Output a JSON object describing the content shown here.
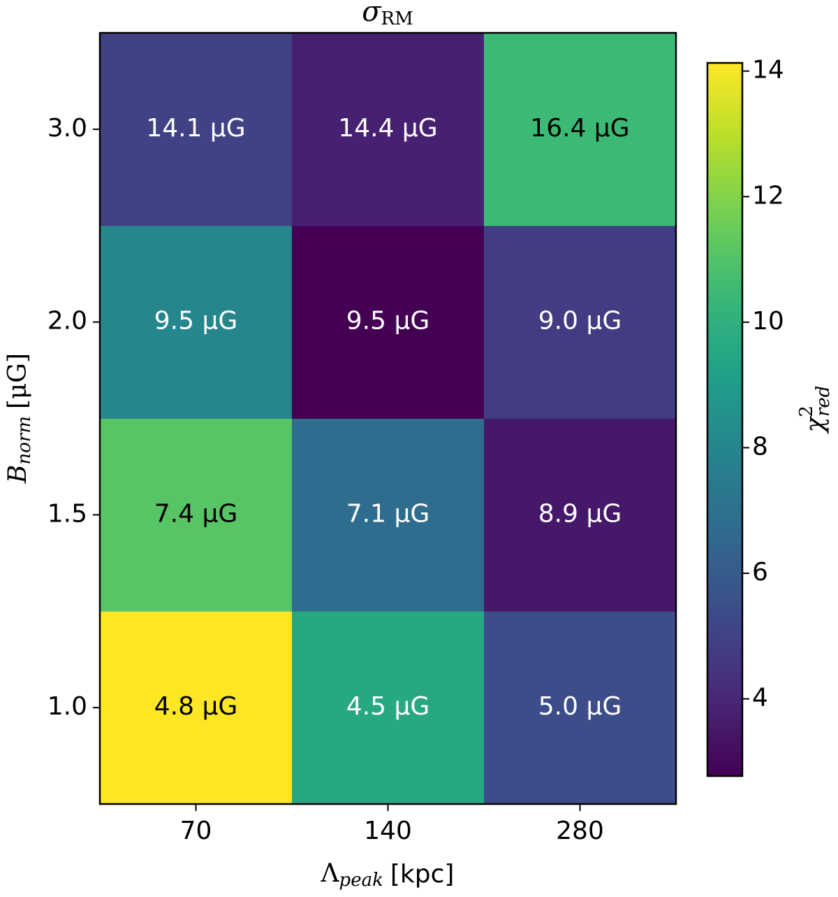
{
  "chart_data": {
    "type": "heatmap",
    "title": {
      "symbol": "σ",
      "subscript": "RM"
    },
    "x_label": {
      "symbol": "Λ",
      "subscript": "peak",
      "unit": "[kpc]"
    },
    "y_label": {
      "symbol": "B",
      "subscript": "norm",
      "unit": "[μG]"
    },
    "colorbar_label": {
      "symbol": "χ",
      "superscript": "2",
      "subscript": "red"
    },
    "x": [
      "70",
      "140",
      "280"
    ],
    "y": [
      "1.0",
      "1.5",
      "2.0",
      "3.0"
    ],
    "values": [
      [
        14.13,
        9.6,
        5.4
      ],
      [
        11.1,
        6.8,
        3.5
      ],
      [
        8.0,
        2.77,
        4.8
      ],
      [
        5.0,
        3.8,
        10.5
      ]
    ],
    "cell_labels": [
      [
        "4.8 μG",
        "4.5 μG",
        "5.0 μG"
      ],
      [
        "7.4 μG",
        "7.1 μG",
        "8.9 μG"
      ],
      [
        "9.5 μG",
        "9.5 μG",
        "9.0 μG"
      ],
      [
        "14.1 μG",
        "14.4 μG",
        "16.4 μG"
      ]
    ],
    "colormap": "viridis",
    "clim": [
      2.77,
      14.13
    ],
    "cticks": [
      4,
      6,
      8,
      10,
      12,
      14
    ]
  }
}
